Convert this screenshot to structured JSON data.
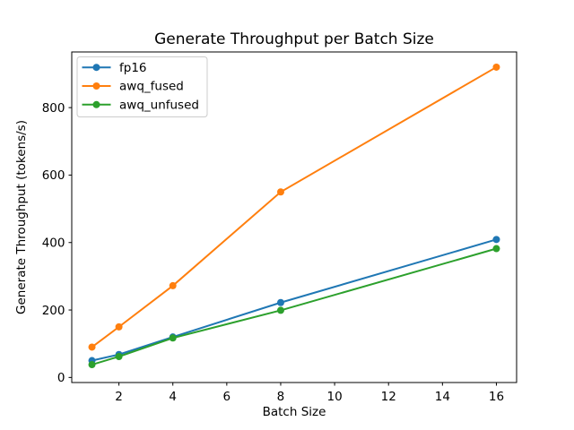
{
  "figure": {
    "background": "#ffffff",
    "text_color": "#000000",
    "legend_border_color": "#cccccc"
  },
  "chart_data": {
    "type": "line",
    "title": "Generate Throughput per Batch Size",
    "xlabel": "Batch Size",
    "ylabel": "Generate Throughput (tokens/s)",
    "x": [
      1,
      2,
      4,
      8,
      16
    ],
    "series": [
      {
        "name": "fp16",
        "color": "#1f77b4",
        "values": [
          50,
          68,
          120,
          222,
          409
        ]
      },
      {
        "name": "awq_fused",
        "color": "#ff7f0e",
        "values": [
          90,
          150,
          272,
          550,
          920
        ]
      },
      {
        "name": "awq_unfused",
        "color": "#2ca02c",
        "values": [
          38,
          62,
          117,
          199,
          382
        ]
      }
    ],
    "xlim": [
      0.25,
      16.75
    ],
    "ylim": [
      -15,
      965
    ],
    "x_ticks": [
      2,
      4,
      6,
      8,
      10,
      12,
      14,
      16
    ],
    "y_ticks": [
      0,
      200,
      400,
      600,
      800
    ],
    "grid": false,
    "legend_position": "upper left",
    "marker": "o"
  }
}
